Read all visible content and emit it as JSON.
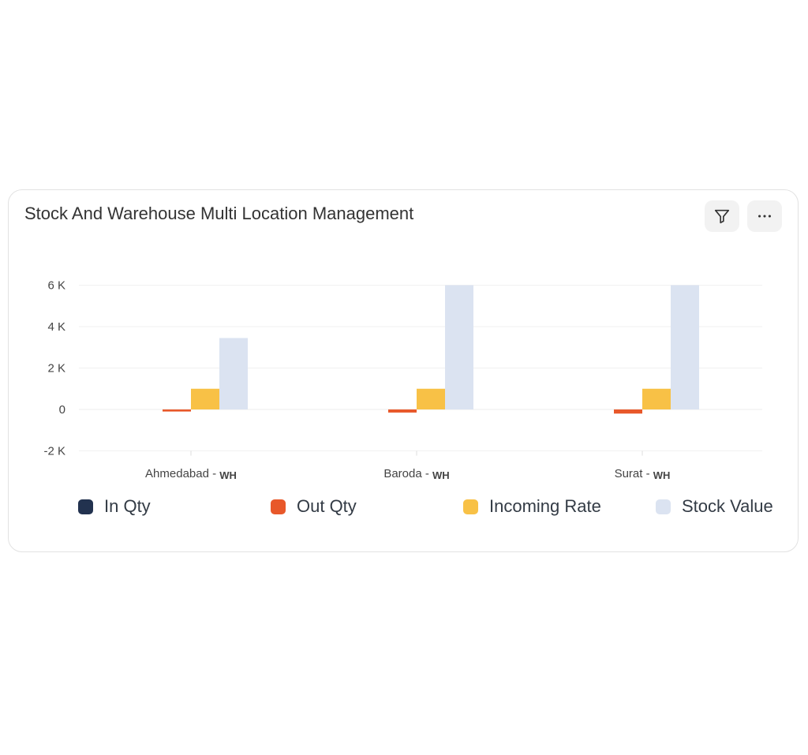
{
  "card": {
    "title": "Stock And Warehouse Multi Location Management",
    "filter_icon": "filter-icon",
    "more_icon": "more-horizontal-icon"
  },
  "chart_data": {
    "type": "bar",
    "categories": [
      "Ahmedabad - WH",
      "Baroda - WH",
      "Surat - WH"
    ],
    "category_parts": [
      {
        "name": "Ahmedabad - ",
        "suffix": "WH"
      },
      {
        "name": "Baroda - ",
        "suffix": "WH"
      },
      {
        "name": "Surat - ",
        "suffix": "WH"
      }
    ],
    "series": [
      {
        "name": "In Qty",
        "color": "#22324f",
        "values": [
          0,
          0,
          0
        ]
      },
      {
        "name": "Out Qty",
        "color": "#e8582a",
        "values": [
          -100,
          -150,
          -200
        ]
      },
      {
        "name": "Incoming Rate",
        "color": "#f8c146",
        "values": [
          1000,
          1000,
          1000
        ]
      },
      {
        "name": "Stock Value",
        "color": "#dbe3f1",
        "values": [
          3450,
          6000,
          6000
        ]
      }
    ],
    "y_ticks": [
      -2000,
      0,
      2000,
      4000,
      6000
    ],
    "y_tick_labels": [
      "-2 K",
      "0",
      "2 K",
      "4 K",
      "6 K"
    ],
    "ylim": [
      -2000,
      6000
    ],
    "grid": true,
    "legend_position": "bottom",
    "title": "Stock And Warehouse Multi Location Management"
  }
}
